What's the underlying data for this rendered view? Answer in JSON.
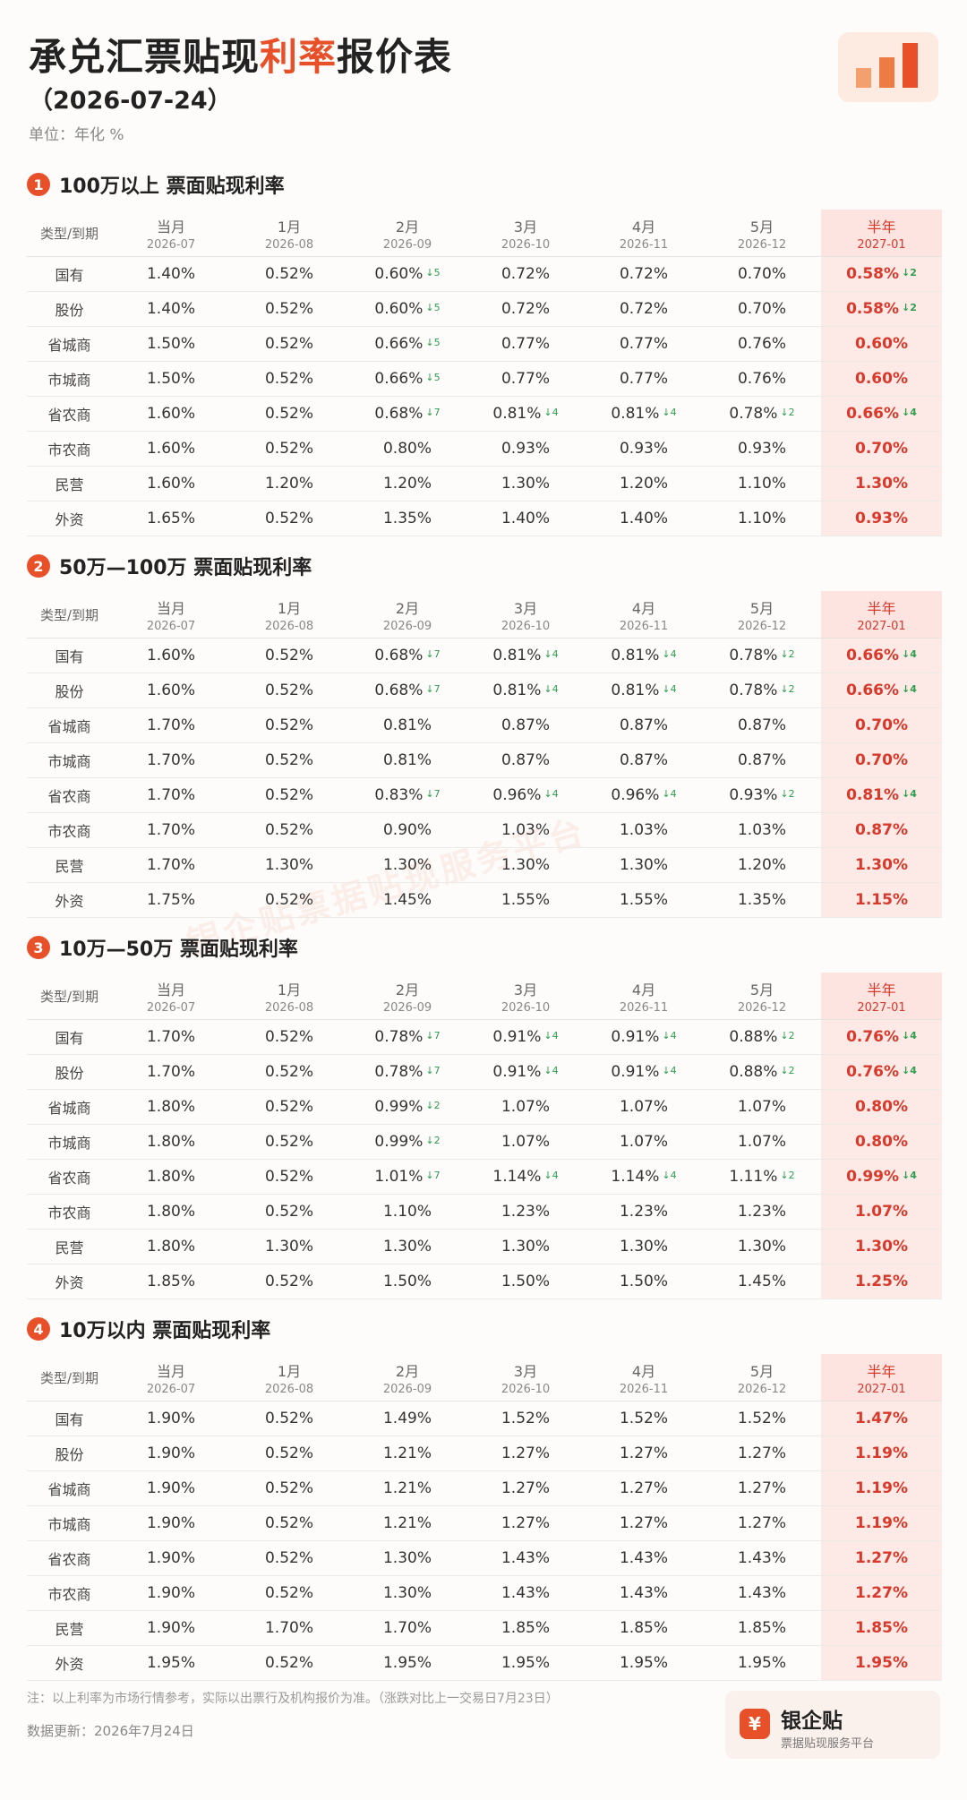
{
  "header": {
    "title_pre": "承兑汇票贴现",
    "title_hl": "利率",
    "title_post": "报价表",
    "date": "（2026-07-24）",
    "unit": "单位：年化 %"
  },
  "colors": {
    "accent": "#e8502a",
    "down": "#2e9e4f",
    "highlight_bg": "#fde9e5"
  },
  "columns": [
    {
      "month": "类型/到期",
      "date": ""
    },
    {
      "month": "当月",
      "date": "2026-07"
    },
    {
      "month": "1月",
      "date": "2026-08"
    },
    {
      "month": "2月",
      "date": "2026-09"
    },
    {
      "month": "3月",
      "date": "2026-10"
    },
    {
      "month": "4月",
      "date": "2026-11"
    },
    {
      "month": "5月",
      "date": "2026-12"
    },
    {
      "month": "半年",
      "date": "2027-01"
    }
  ],
  "sections": [
    {
      "num": "1",
      "title": "100万以上 票面贴现利率",
      "rows": [
        {
          "type": "国有",
          "cells": [
            {
              "v": "1.40%"
            },
            {
              "v": "0.52%"
            },
            {
              "v": "0.60%",
              "c": "↓5"
            },
            {
              "v": "0.72%"
            },
            {
              "v": "0.72%"
            },
            {
              "v": "0.70%"
            },
            {
              "v": "0.58%",
              "c": "↓2"
            }
          ]
        },
        {
          "type": "股份",
          "cells": [
            {
              "v": "1.40%"
            },
            {
              "v": "0.52%"
            },
            {
              "v": "0.60%",
              "c": "↓5"
            },
            {
              "v": "0.72%"
            },
            {
              "v": "0.72%"
            },
            {
              "v": "0.70%"
            },
            {
              "v": "0.58%",
              "c": "↓2"
            }
          ]
        },
        {
          "type": "省城商",
          "cells": [
            {
              "v": "1.50%"
            },
            {
              "v": "0.52%"
            },
            {
              "v": "0.66%",
              "c": "↓5"
            },
            {
              "v": "0.77%"
            },
            {
              "v": "0.77%"
            },
            {
              "v": "0.76%"
            },
            {
              "v": "0.60%"
            }
          ]
        },
        {
          "type": "市城商",
          "cells": [
            {
              "v": "1.50%"
            },
            {
              "v": "0.52%"
            },
            {
              "v": "0.66%",
              "c": "↓5"
            },
            {
              "v": "0.77%"
            },
            {
              "v": "0.77%"
            },
            {
              "v": "0.76%"
            },
            {
              "v": "0.60%"
            }
          ]
        },
        {
          "type": "省农商",
          "cells": [
            {
              "v": "1.60%"
            },
            {
              "v": "0.52%"
            },
            {
              "v": "0.68%",
              "c": "↓7"
            },
            {
              "v": "0.81%",
              "c": "↓4"
            },
            {
              "v": "0.81%",
              "c": "↓4"
            },
            {
              "v": "0.78%",
              "c": "↓2"
            },
            {
              "v": "0.66%",
              "c": "↓4"
            }
          ]
        },
        {
          "type": "市农商",
          "cells": [
            {
              "v": "1.60%"
            },
            {
              "v": "0.52%"
            },
            {
              "v": "0.80%"
            },
            {
              "v": "0.93%"
            },
            {
              "v": "0.93%"
            },
            {
              "v": "0.93%"
            },
            {
              "v": "0.70%"
            }
          ]
        },
        {
          "type": "民营",
          "cells": [
            {
              "v": "1.60%"
            },
            {
              "v": "1.20%"
            },
            {
              "v": "1.20%"
            },
            {
              "v": "1.30%"
            },
            {
              "v": "1.20%"
            },
            {
              "v": "1.10%"
            },
            {
              "v": "1.30%"
            }
          ]
        },
        {
          "type": "外资",
          "cells": [
            {
              "v": "1.65%"
            },
            {
              "v": "0.52%"
            },
            {
              "v": "1.35%"
            },
            {
              "v": "1.40%"
            },
            {
              "v": "1.40%"
            },
            {
              "v": "1.10%"
            },
            {
              "v": "0.93%"
            }
          ]
        }
      ]
    },
    {
      "num": "2",
      "title": "50万—100万 票面贴现利率",
      "rows": [
        {
          "type": "国有",
          "cells": [
            {
              "v": "1.60%"
            },
            {
              "v": "0.52%"
            },
            {
              "v": "0.68%",
              "c": "↓7"
            },
            {
              "v": "0.81%",
              "c": "↓4"
            },
            {
              "v": "0.81%",
              "c": "↓4"
            },
            {
              "v": "0.78%",
              "c": "↓2"
            },
            {
              "v": "0.66%",
              "c": "↓4"
            }
          ]
        },
        {
          "type": "股份",
          "cells": [
            {
              "v": "1.60%"
            },
            {
              "v": "0.52%"
            },
            {
              "v": "0.68%",
              "c": "↓7"
            },
            {
              "v": "0.81%",
              "c": "↓4"
            },
            {
              "v": "0.81%",
              "c": "↓4"
            },
            {
              "v": "0.78%",
              "c": "↓2"
            },
            {
              "v": "0.66%",
              "c": "↓4"
            }
          ]
        },
        {
          "type": "省城商",
          "cells": [
            {
              "v": "1.70%"
            },
            {
              "v": "0.52%"
            },
            {
              "v": "0.81%"
            },
            {
              "v": "0.87%"
            },
            {
              "v": "0.87%"
            },
            {
              "v": "0.87%"
            },
            {
              "v": "0.70%"
            }
          ]
        },
        {
          "type": "市城商",
          "cells": [
            {
              "v": "1.70%"
            },
            {
              "v": "0.52%"
            },
            {
              "v": "0.81%"
            },
            {
              "v": "0.87%"
            },
            {
              "v": "0.87%"
            },
            {
              "v": "0.87%"
            },
            {
              "v": "0.70%"
            }
          ]
        },
        {
          "type": "省农商",
          "cells": [
            {
              "v": "1.70%"
            },
            {
              "v": "0.52%"
            },
            {
              "v": "0.83%",
              "c": "↓7"
            },
            {
              "v": "0.96%",
              "c": "↓4"
            },
            {
              "v": "0.96%",
              "c": "↓4"
            },
            {
              "v": "0.93%",
              "c": "↓2"
            },
            {
              "v": "0.81%",
              "c": "↓4"
            }
          ]
        },
        {
          "type": "市农商",
          "cells": [
            {
              "v": "1.70%"
            },
            {
              "v": "0.52%"
            },
            {
              "v": "0.90%"
            },
            {
              "v": "1.03%"
            },
            {
              "v": "1.03%"
            },
            {
              "v": "1.03%"
            },
            {
              "v": "0.87%"
            }
          ]
        },
        {
          "type": "民营",
          "cells": [
            {
              "v": "1.70%"
            },
            {
              "v": "1.30%"
            },
            {
              "v": "1.30%"
            },
            {
              "v": "1.30%"
            },
            {
              "v": "1.30%"
            },
            {
              "v": "1.20%"
            },
            {
              "v": "1.30%"
            }
          ]
        },
        {
          "type": "外资",
          "cells": [
            {
              "v": "1.75%"
            },
            {
              "v": "0.52%"
            },
            {
              "v": "1.45%"
            },
            {
              "v": "1.55%"
            },
            {
              "v": "1.55%"
            },
            {
              "v": "1.35%"
            },
            {
              "v": "1.15%"
            }
          ]
        }
      ]
    },
    {
      "num": "3",
      "title": "10万—50万 票面贴现利率",
      "rows": [
        {
          "type": "国有",
          "cells": [
            {
              "v": "1.70%"
            },
            {
              "v": "0.52%"
            },
            {
              "v": "0.78%",
              "c": "↓7"
            },
            {
              "v": "0.91%",
              "c": "↓4"
            },
            {
              "v": "0.91%",
              "c": "↓4"
            },
            {
              "v": "0.88%",
              "c": "↓2"
            },
            {
              "v": "0.76%",
              "c": "↓4"
            }
          ]
        },
        {
          "type": "股份",
          "cells": [
            {
              "v": "1.70%"
            },
            {
              "v": "0.52%"
            },
            {
              "v": "0.78%",
              "c": "↓7"
            },
            {
              "v": "0.91%",
              "c": "↓4"
            },
            {
              "v": "0.91%",
              "c": "↓4"
            },
            {
              "v": "0.88%",
              "c": "↓2"
            },
            {
              "v": "0.76%",
              "c": "↓4"
            }
          ]
        },
        {
          "type": "省城商",
          "cells": [
            {
              "v": "1.80%"
            },
            {
              "v": "0.52%"
            },
            {
              "v": "0.99%",
              "c": "↓2"
            },
            {
              "v": "1.07%"
            },
            {
              "v": "1.07%"
            },
            {
              "v": "1.07%"
            },
            {
              "v": "0.80%"
            }
          ]
        },
        {
          "type": "市城商",
          "cells": [
            {
              "v": "1.80%"
            },
            {
              "v": "0.52%"
            },
            {
              "v": "0.99%",
              "c": "↓2"
            },
            {
              "v": "1.07%"
            },
            {
              "v": "1.07%"
            },
            {
              "v": "1.07%"
            },
            {
              "v": "0.80%"
            }
          ]
        },
        {
          "type": "省农商",
          "cells": [
            {
              "v": "1.80%"
            },
            {
              "v": "0.52%"
            },
            {
              "v": "1.01%",
              "c": "↓7"
            },
            {
              "v": "1.14%",
              "c": "↓4"
            },
            {
              "v": "1.14%",
              "c": "↓4"
            },
            {
              "v": "1.11%",
              "c": "↓2"
            },
            {
              "v": "0.99%",
              "c": "↓4"
            }
          ]
        },
        {
          "type": "市农商",
          "cells": [
            {
              "v": "1.80%"
            },
            {
              "v": "0.52%"
            },
            {
              "v": "1.10%"
            },
            {
              "v": "1.23%"
            },
            {
              "v": "1.23%"
            },
            {
              "v": "1.23%"
            },
            {
              "v": "1.07%"
            }
          ]
        },
        {
          "type": "民营",
          "cells": [
            {
              "v": "1.80%"
            },
            {
              "v": "1.30%"
            },
            {
              "v": "1.30%"
            },
            {
              "v": "1.30%"
            },
            {
              "v": "1.30%"
            },
            {
              "v": "1.30%"
            },
            {
              "v": "1.30%"
            }
          ]
        },
        {
          "type": "外资",
          "cells": [
            {
              "v": "1.85%"
            },
            {
              "v": "0.52%"
            },
            {
              "v": "1.50%"
            },
            {
              "v": "1.50%"
            },
            {
              "v": "1.50%"
            },
            {
              "v": "1.45%"
            },
            {
              "v": "1.25%"
            }
          ]
        }
      ]
    },
    {
      "num": "4",
      "title": "10万以内 票面贴现利率",
      "rows": [
        {
          "type": "国有",
          "cells": [
            {
              "v": "1.90%"
            },
            {
              "v": "0.52%"
            },
            {
              "v": "1.49%"
            },
            {
              "v": "1.52%"
            },
            {
              "v": "1.52%"
            },
            {
              "v": "1.52%"
            },
            {
              "v": "1.47%"
            }
          ]
        },
        {
          "type": "股份",
          "cells": [
            {
              "v": "1.90%"
            },
            {
              "v": "0.52%"
            },
            {
              "v": "1.21%"
            },
            {
              "v": "1.27%"
            },
            {
              "v": "1.27%"
            },
            {
              "v": "1.27%"
            },
            {
              "v": "1.19%"
            }
          ]
        },
        {
          "type": "省城商",
          "cells": [
            {
              "v": "1.90%"
            },
            {
              "v": "0.52%"
            },
            {
              "v": "1.21%"
            },
            {
              "v": "1.27%"
            },
            {
              "v": "1.27%"
            },
            {
              "v": "1.27%"
            },
            {
              "v": "1.19%"
            }
          ]
        },
        {
          "type": "市城商",
          "cells": [
            {
              "v": "1.90%"
            },
            {
              "v": "0.52%"
            },
            {
              "v": "1.21%"
            },
            {
              "v": "1.27%"
            },
            {
              "v": "1.27%"
            },
            {
              "v": "1.27%"
            },
            {
              "v": "1.19%"
            }
          ]
        },
        {
          "type": "省农商",
          "cells": [
            {
              "v": "1.90%"
            },
            {
              "v": "0.52%"
            },
            {
              "v": "1.30%"
            },
            {
              "v": "1.43%"
            },
            {
              "v": "1.43%"
            },
            {
              "v": "1.43%"
            },
            {
              "v": "1.27%"
            }
          ]
        },
        {
          "type": "市农商",
          "cells": [
            {
              "v": "1.90%"
            },
            {
              "v": "0.52%"
            },
            {
              "v": "1.30%"
            },
            {
              "v": "1.43%"
            },
            {
              "v": "1.43%"
            },
            {
              "v": "1.43%"
            },
            {
              "v": "1.27%"
            }
          ]
        },
        {
          "type": "民营",
          "cells": [
            {
              "v": "1.90%"
            },
            {
              "v": "1.70%"
            },
            {
              "v": "1.70%"
            },
            {
              "v": "1.85%"
            },
            {
              "v": "1.85%"
            },
            {
              "v": "1.85%"
            },
            {
              "v": "1.85%"
            }
          ]
        },
        {
          "type": "外资",
          "cells": [
            {
              "v": "1.95%"
            },
            {
              "v": "0.52%"
            },
            {
              "v": "1.95%"
            },
            {
              "v": "1.95%"
            },
            {
              "v": "1.95%"
            },
            {
              "v": "1.95%"
            },
            {
              "v": "1.95%"
            }
          ]
        }
      ]
    }
  ],
  "watermark": "银企贴票据贴现服务平台",
  "footer": {
    "note": "注：以上利率为市场行情参考，实际以出票行及机构报价为准。（涨跌对比上一交易日7月23日）",
    "updated": "数据更新：2026年7月24日"
  },
  "brand": {
    "icon": "¥",
    "name": "银企贴",
    "sub": "票据贴现服务平台"
  }
}
